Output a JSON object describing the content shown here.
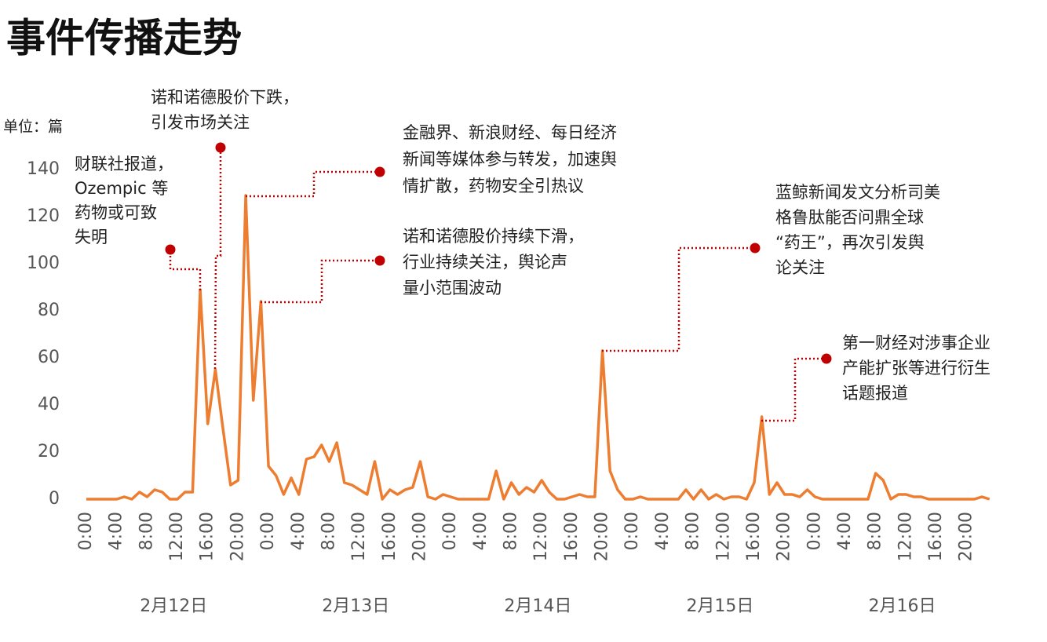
{
  "chart_data": {
    "type": "line",
    "title": "事件传播走势",
    "y_unit": "单位：篇",
    "categories": [
      "0:00",
      null,
      null,
      null,
      "4:00",
      null,
      null,
      null,
      "8:00",
      null,
      null,
      null,
      "12:00",
      null,
      null,
      null,
      "16:00",
      null,
      null,
      null,
      "20:00",
      null,
      null,
      null,
      "0:00",
      null,
      null,
      null,
      "4:00",
      null,
      null,
      null,
      "8:00",
      null,
      null,
      null,
      "12:00",
      null,
      null,
      null,
      "16:00",
      null,
      null,
      null,
      "20:00",
      null,
      null,
      null,
      "0:00",
      null,
      null,
      null,
      "4:00",
      null,
      null,
      null,
      "8:00",
      null,
      null,
      null,
      "12:00",
      null,
      null,
      null,
      "16:00",
      null,
      null,
      null,
      "20:00",
      null,
      null,
      null,
      "0:00",
      null,
      null,
      null,
      "4:00",
      null,
      null,
      null,
      "8:00",
      null,
      null,
      null,
      "12:00",
      null,
      null,
      null,
      "16:00",
      null,
      null,
      null,
      "20:00",
      null,
      null,
      null,
      "0:00",
      null,
      null,
      null,
      "4:00",
      null,
      null,
      null,
      "8:00",
      null,
      null,
      null,
      "12:00",
      null,
      null,
      null,
      "16:00",
      null,
      null,
      null,
      "20:00",
      null,
      null,
      null
    ],
    "day_labels": [
      "2月12日",
      "2月13日",
      "2月14日",
      "2月15日",
      "2月16日"
    ],
    "values": [
      0,
      0,
      0,
      0,
      0,
      1,
      0,
      3,
      1,
      4,
      3,
      0,
      0,
      3,
      3,
      89,
      32,
      55,
      30,
      6,
      8,
      129,
      42,
      84,
      14,
      10,
      2,
      9,
      2,
      17,
      18,
      23,
      16,
      24,
      7,
      6,
      4,
      2,
      16,
      0,
      4,
      2,
      4,
      5,
      16,
      1,
      0,
      2,
      1,
      0,
      0,
      0,
      0,
      0,
      12,
      0,
      7,
      2,
      5,
      3,
      8,
      3,
      0,
      0,
      1,
      2,
      1,
      1,
      63,
      12,
      4,
      0,
      0,
      1,
      0,
      0,
      0,
      0,
      0,
      4,
      0,
      4,
      0,
      2,
      0,
      1,
      1,
      0,
      7,
      35,
      2,
      7,
      2,
      2,
      1,
      4,
      1,
      0,
      0,
      0,
      0,
      0,
      0,
      0,
      11,
      8,
      0,
      2,
      2,
      1,
      1,
      0,
      0,
      0,
      0,
      0,
      0,
      0,
      1,
      0
    ],
    "color": "#ed7d31",
    "ylim": [
      0,
      140
    ],
    "yticks": [
      0,
      20,
      40,
      60,
      80,
      100,
      120,
      140
    ],
    "grid": false,
    "annotations": [
      {
        "lines": [
          "财联社报道，",
          "Ozempic 等",
          "药物或可致",
          "失明"
        ]
      },
      {
        "lines": [
          "诺和诺德股价下跌，",
          "引发市场关注"
        ]
      },
      {
        "lines": [
          "金融界、新浪财经、每日经济",
          "新闻等媒体参与转发，加速舆",
          "情扩散，药物安全引热议"
        ]
      },
      {
        "lines": [
          "诺和诺德股价持续下滑，",
          "行业持续关注，舆论声",
          "量小范围波动"
        ]
      },
      {
        "lines": [
          "蓝鲸新闻发文分析司美",
          "格鲁肽能否问鼎全球",
          "“药王”，再次引发舆",
          "论关注"
        ]
      },
      {
        "lines": [
          "第一财经对涉事企业",
          "产能扩张等进行衍生",
          "话题报道"
        ]
      }
    ]
  }
}
